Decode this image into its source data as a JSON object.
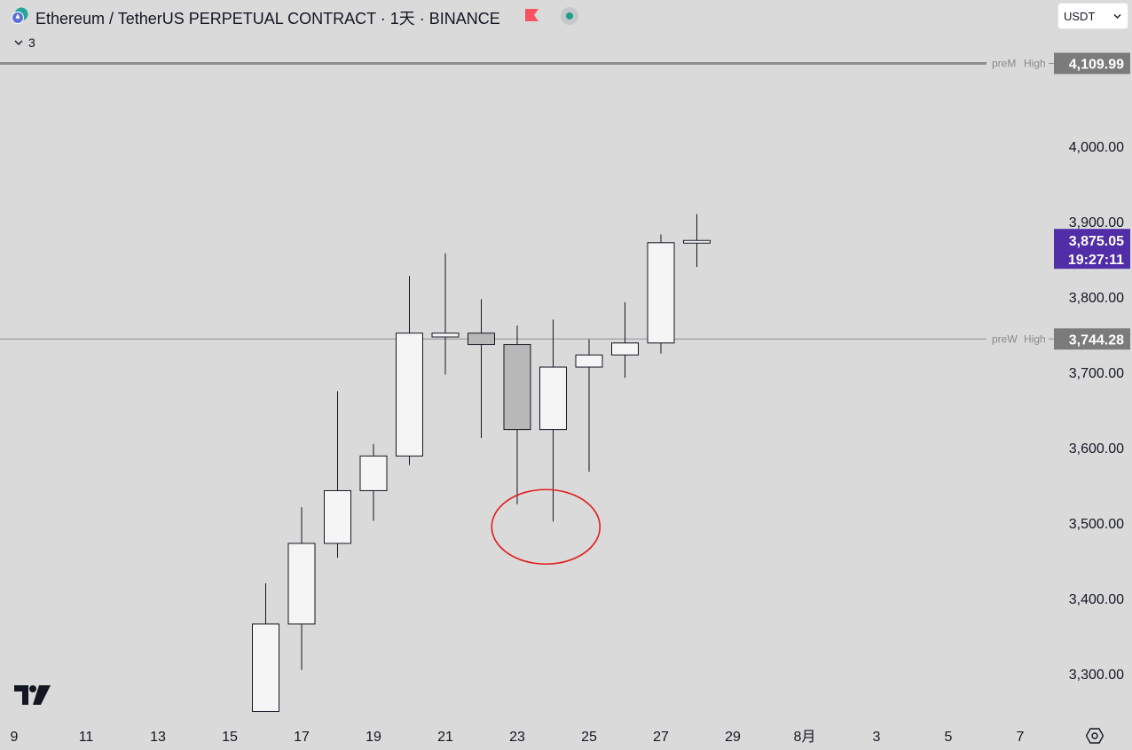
{
  "header": {
    "title": "Ethereum / TetherUS PERPETUAL CONTRACT · 1天 · BINANCE",
    "indicator_count": "3",
    "currency": "USDT",
    "flag_color": "#f7525f",
    "status_color": "#1f9e89"
  },
  "colors": {
    "background": "#dadada",
    "up_candle_fill": "#f5f5f5",
    "down_candle_fill": "#b8b8b8",
    "candle_border": "#131722",
    "last_price_badge": "#512da8",
    "level_badge": "#7b7b7b",
    "annotation": "#e11d1d"
  },
  "chart_data": {
    "type": "candlestick",
    "title": "Ethereum / TetherUS PERPETUAL CONTRACT · 1天 · BINANCE",
    "x_ticks": [
      "9",
      "11",
      "13",
      "15",
      "17",
      "19",
      "21",
      "23",
      "25",
      "27",
      "29",
      "8月",
      "3",
      "5",
      "7"
    ],
    "y_ticks": [
      "3,300.00",
      "3,400.00",
      "3,500.00",
      "3,600.00",
      "3,700.00",
      "3,800.00",
      "3,900.00",
      "4,000.00"
    ],
    "y_tick_values": [
      3300,
      3400,
      3500,
      3600,
      3700,
      3800,
      3900,
      4000
    ],
    "candles": [
      {
        "date": "16",
        "open": 3250,
        "high": 3420,
        "low": 3250,
        "close": 3366
      },
      {
        "date": "17",
        "open": 3366,
        "high": 3521,
        "low": 3305,
        "close": 3473
      },
      {
        "date": "18",
        "open": 3473,
        "high": 3675,
        "low": 3454,
        "close": 3543
      },
      {
        "date": "19",
        "open": 3543,
        "high": 3605,
        "low": 3503,
        "close": 3589
      },
      {
        "date": "20",
        "open": 3589,
        "high": 3828,
        "low": 3577,
        "close": 3752
      },
      {
        "date": "21",
        "open": 3747,
        "high": 3858,
        "low": 3697,
        "close": 3752
      },
      {
        "date": "22",
        "open": 3752,
        "high": 3797,
        "low": 3613,
        "close": 3737
      },
      {
        "date": "23",
        "open": 3737,
        "high": 3762,
        "low": 3525,
        "close": 3624
      },
      {
        "date": "24",
        "open": 3624,
        "high": 3770,
        "low": 3502,
        "close": 3707
      },
      {
        "date": "25",
        "open": 3707,
        "high": 3744,
        "low": 3568,
        "close": 3723
      },
      {
        "date": "26",
        "open": 3723,
        "high": 3793,
        "low": 3693,
        "close": 3739
      },
      {
        "date": "27",
        "open": 3739,
        "high": 3883,
        "low": 3725,
        "close": 3872
      },
      {
        "date": "28",
        "open": 3872,
        "high": 3910,
        "low": 3840,
        "close": 3875
      }
    ],
    "levels": [
      {
        "name": "preM",
        "type": "High",
        "value": 4109.99,
        "display": "4,109.99"
      },
      {
        "name": "preW",
        "type": "High",
        "value": 3744.28,
        "display": "3,744.28"
      }
    ],
    "last_price": {
      "value": 3875.05,
      "display": "3,875.05",
      "countdown": "19:27:11"
    },
    "annotation": {
      "shape": "ellipse",
      "color": "#e11d1d",
      "around_dates": [
        "23",
        "24"
      ],
      "around_price": 3495
    }
  }
}
